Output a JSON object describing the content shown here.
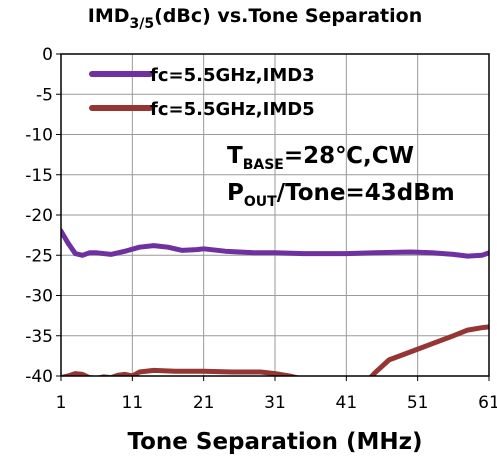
{
  "chart_data": {
    "type": "line",
    "title": {
      "main": "IMD",
      "sub": "3/5",
      "rest": "(dBc) vs.Tone Separation"
    },
    "xlabel": "Tone Separation (MHz)",
    "ylabel": "",
    "xlim": [
      1,
      61
    ],
    "ylim": [
      -40,
      0
    ],
    "x_ticks": [
      1,
      11,
      21,
      31,
      41,
      51,
      61
    ],
    "y_ticks": [
      0,
      -5,
      -10,
      -15,
      -20,
      -25,
      -30,
      -35,
      -40
    ],
    "grid": true,
    "legend_position": "top-left",
    "annotations": [
      {
        "pre": "T",
        "sub": "BASE",
        "post": "=28℃,CW"
      },
      {
        "pre": "P",
        "sub": "OUT",
        "post": "/Tone=43dBm"
      }
    ],
    "series": [
      {
        "name": "fc=5.5GHz,IMD3",
        "color": "#7030A0",
        "points": [
          [
            1,
            -22
          ],
          [
            2,
            -23.5
          ],
          [
            3,
            -24.8
          ],
          [
            4,
            -25
          ],
          [
            5,
            -24.7
          ],
          [
            6,
            -24.7
          ],
          [
            8,
            -24.9
          ],
          [
            10,
            -24.5
          ],
          [
            12,
            -24
          ],
          [
            14,
            -23.8
          ],
          [
            16,
            -24
          ],
          [
            18,
            -24.4
          ],
          [
            20,
            -24.3
          ],
          [
            21,
            -24.2
          ],
          [
            24,
            -24.5
          ],
          [
            28,
            -24.7
          ],
          [
            31,
            -24.7
          ],
          [
            35,
            -24.8
          ],
          [
            41,
            -24.8
          ],
          [
            45,
            -24.7
          ],
          [
            50,
            -24.6
          ],
          [
            53,
            -24.7
          ],
          [
            56,
            -24.9
          ],
          [
            58,
            -25.1
          ],
          [
            60,
            -25
          ],
          [
            61,
            -24.7
          ]
        ]
      },
      {
        "name": "fc=5.5GHz,IMD5",
        "color": "#943634",
        "points": [
          [
            1,
            -40.2
          ],
          [
            2,
            -40
          ],
          [
            3,
            -39.7
          ],
          [
            4,
            -39.8
          ],
          [
            5,
            -40.2
          ],
          [
            6,
            -40.3
          ],
          [
            7,
            -40.1
          ],
          [
            8,
            -40.2
          ],
          [
            9,
            -39.9
          ],
          [
            10,
            -39.8
          ],
          [
            11,
            -40
          ],
          [
            12,
            -39.5
          ],
          [
            14,
            -39.3
          ],
          [
            17,
            -39.4
          ],
          [
            21,
            -39.4
          ],
          [
            25,
            -39.5
          ],
          [
            29,
            -39.5
          ],
          [
            31,
            -39.7
          ],
          [
            33,
            -40
          ],
          [
            35,
            -40.4
          ],
          [
            38,
            -40.6
          ],
          [
            40,
            -40.7
          ],
          [
            42,
            -40.9
          ],
          [
            44,
            -40.6
          ],
          [
            45,
            -39.6
          ],
          [
            47,
            -38
          ],
          [
            50,
            -37
          ],
          [
            53,
            -36
          ],
          [
            56,
            -35
          ],
          [
            58,
            -34.3
          ],
          [
            60,
            -34
          ],
          [
            61,
            -33.9
          ]
        ]
      }
    ]
  }
}
